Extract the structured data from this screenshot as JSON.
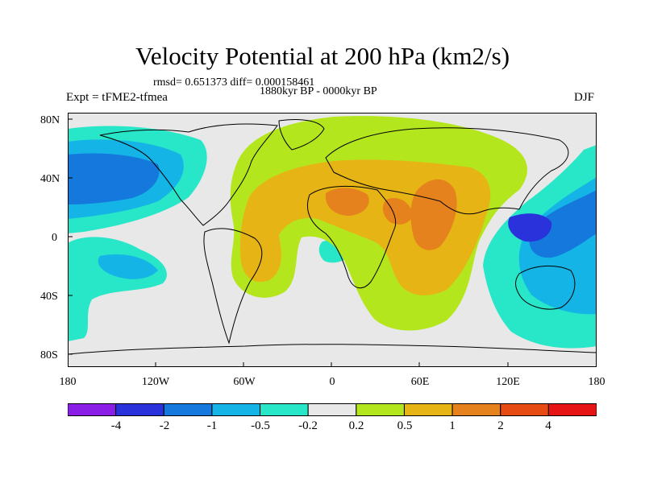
{
  "plot": {
    "title": "Velocity Potential at 200 hPa (km2/s)",
    "stats": "rmsd= 0.651373 diff= 0.000158461",
    "period": "1880kyr BP - 0000kyr BP",
    "experiment": "Expt = tFME2-tfmea",
    "season": "DJF"
  },
  "axes": {
    "y_labels": [
      "80N",
      "40N",
      "0",
      "40S",
      "80S"
    ],
    "x_labels": [
      "180",
      "120W",
      "60W",
      "0",
      "60E",
      "120E",
      "180"
    ]
  },
  "colorbar": {
    "labels": [
      "-4",
      "-2",
      "-1",
      "-0.5",
      "-0.2",
      "0.2",
      "0.5",
      "1",
      "2",
      "4"
    ],
    "colors": [
      "#8a1ee6",
      "#2a32dc",
      "#1478dc",
      "#14b4e6",
      "#28e6c8",
      "#e8e8e8",
      "#b4e61e",
      "#e6b414",
      "#e6821e",
      "#e64b14",
      "#e61414"
    ]
  },
  "colors": {
    "land_outline": "#000000",
    "neutral": "#e8e8e8"
  }
}
